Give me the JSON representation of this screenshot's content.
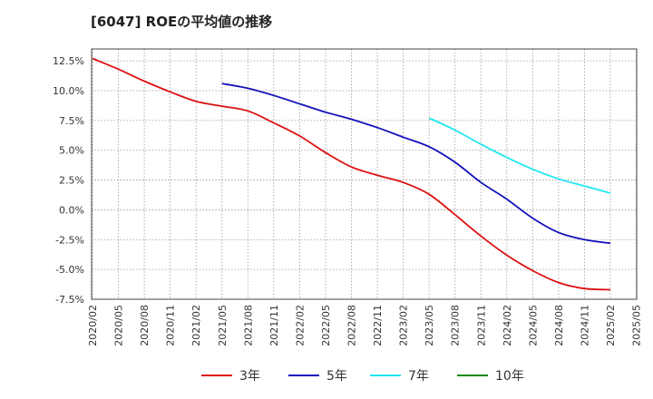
{
  "chart_data": {
    "type": "line",
    "title": "[6047]  ROEの平均値の推移",
    "xlabel": "",
    "ylabel": "",
    "ylim": [
      -7.5,
      13.5
    ],
    "yticks": [
      "12.5%",
      "10.0%",
      "7.5%",
      "5.0%",
      "2.5%",
      "0.0%",
      "-2.5%",
      "-5.0%",
      "-7.5%"
    ],
    "ytick_values": [
      12.5,
      10.0,
      7.5,
      5.0,
      2.5,
      0.0,
      -2.5,
      -5.0,
      -7.5
    ],
    "x": [
      "2020/02",
      "2020/05",
      "2020/08",
      "2020/11",
      "2021/02",
      "2021/05",
      "2021/08",
      "2021/11",
      "2022/02",
      "2022/05",
      "2022/08",
      "2022/11",
      "2023/02",
      "2023/05",
      "2023/08",
      "2023/11",
      "2024/02",
      "2024/05",
      "2024/08",
      "2024/11",
      "2025/02",
      "2025/05"
    ],
    "grid": true,
    "legend_position": "bottom",
    "series": [
      {
        "name": "3年",
        "color": "#dd1111",
        "values": [
          12.7,
          11.8,
          10.8,
          9.9,
          9.1,
          8.7,
          8.3,
          7.3,
          6.2,
          4.8,
          3.6,
          2.9,
          2.3,
          1.3,
          -0.4,
          -2.2,
          -3.8,
          -5.1,
          -6.1,
          -6.6,
          -6.7,
          null
        ]
      },
      {
        "name": "5年",
        "color": "#1111bb",
        "values": [
          null,
          null,
          null,
          null,
          null,
          10.6,
          10.2,
          9.6,
          8.9,
          8.2,
          7.6,
          6.9,
          6.1,
          5.3,
          4.0,
          2.3,
          0.9,
          -0.7,
          -1.9,
          -2.5,
          -2.8,
          null
        ]
      },
      {
        "name": "7年",
        "color": "#22e6f0",
        "values": [
          null,
          null,
          null,
          null,
          null,
          null,
          null,
          null,
          null,
          null,
          null,
          null,
          null,
          7.7,
          6.7,
          5.5,
          4.4,
          3.4,
          2.6,
          2.0,
          1.4,
          null
        ]
      },
      {
        "name": "10年",
        "color": "#118811",
        "values": [
          null,
          null,
          null,
          null,
          null,
          null,
          null,
          null,
          null,
          null,
          null,
          null,
          null,
          null,
          null,
          null,
          null,
          null,
          null,
          null,
          null,
          null
        ]
      }
    ]
  }
}
